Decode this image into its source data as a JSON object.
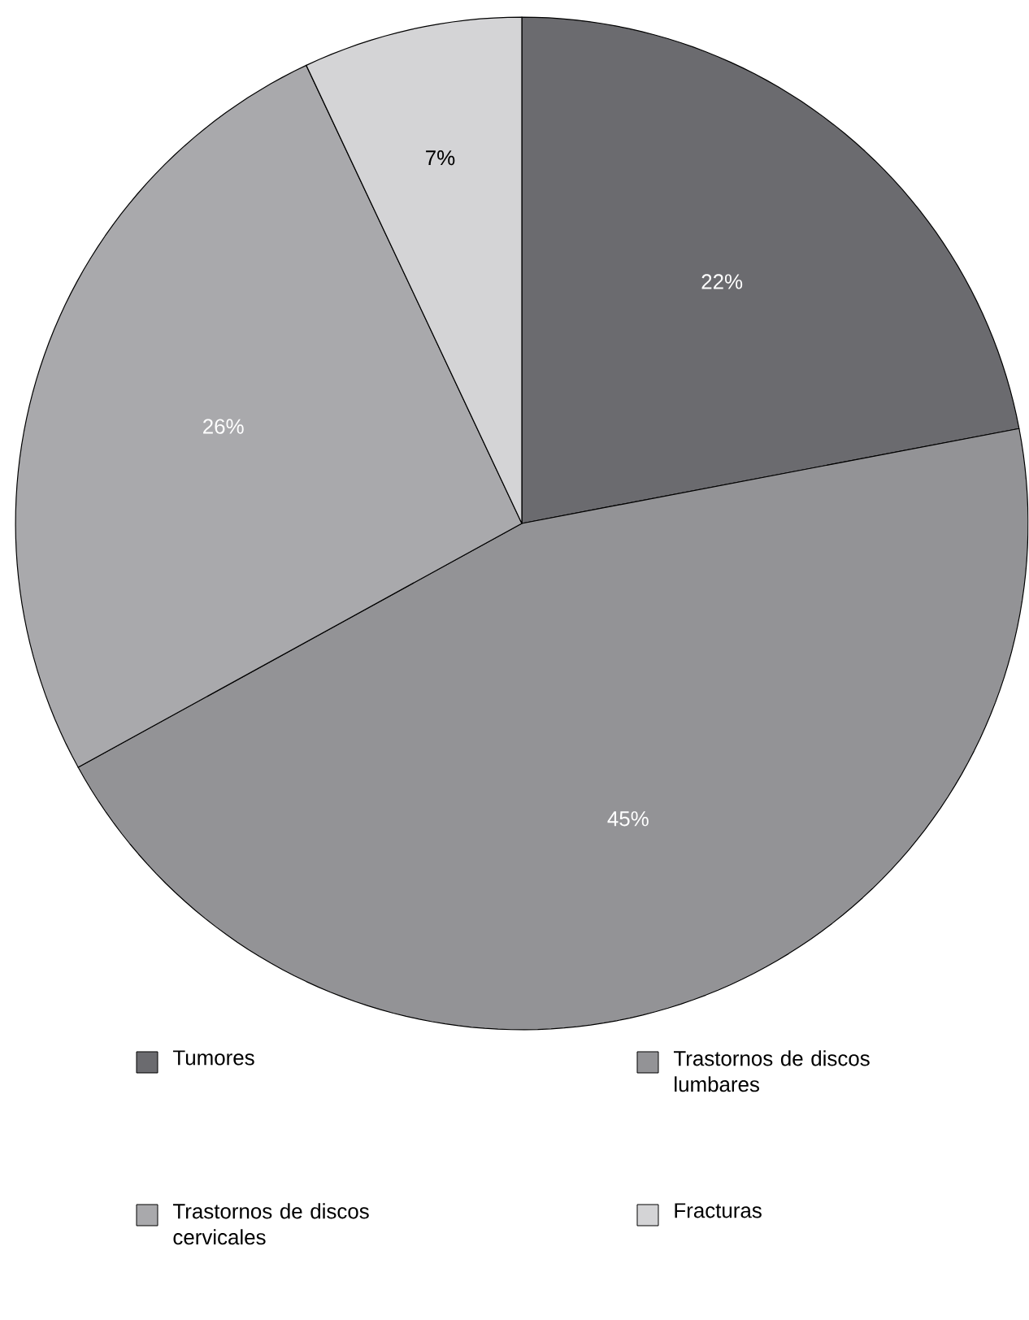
{
  "chart_data": {
    "type": "pie",
    "categories": [
      "Tumores",
      "Trastornos de discos lumbares",
      "Trastornos de discos cervicales",
      "Fracturas"
    ],
    "values": [
      22,
      45,
      26,
      7
    ],
    "colors": [
      "#6b6b6f",
      "#939396",
      "#a9a9ac",
      "#d4d4d6"
    ],
    "value_labels": [
      "22%",
      "45%",
      "26%",
      "7%"
    ],
    "legend": "bottom"
  }
}
